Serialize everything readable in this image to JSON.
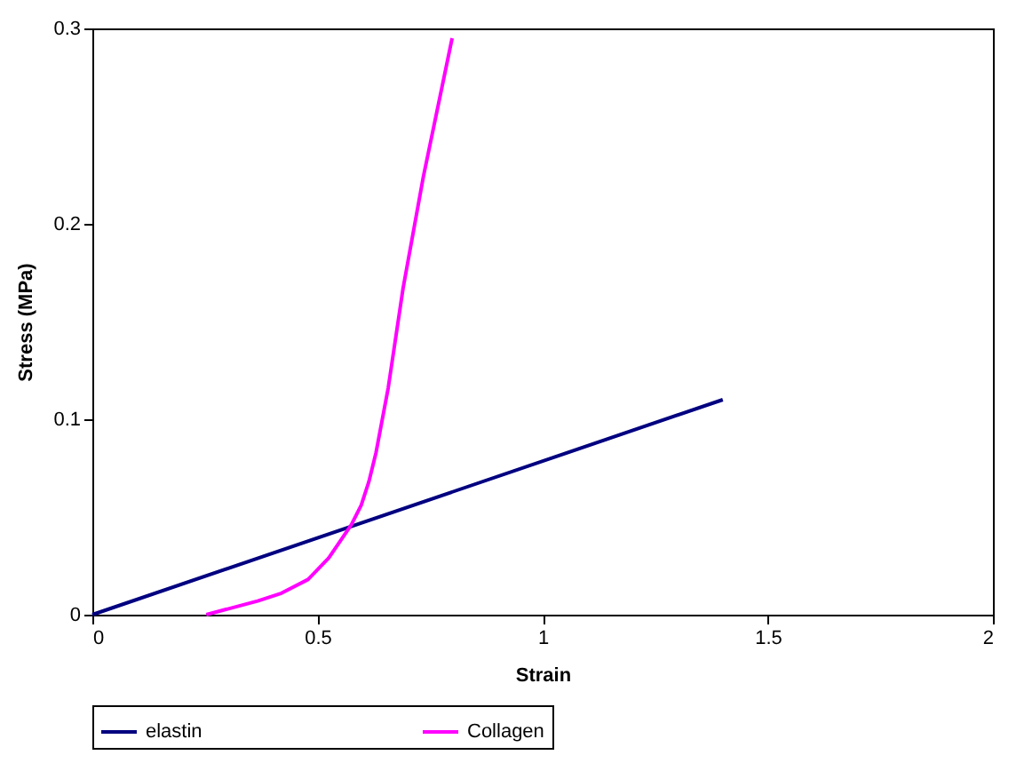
{
  "chart_data": {
    "type": "line",
    "xlabel": "Strain",
    "ylabel": "Stress (MPa)",
    "xlim": [
      0,
      2
    ],
    "xticks": [
      0,
      0.5,
      1,
      1.5,
      2
    ],
    "ylim": [
      0,
      0.3
    ],
    "yticks": [
      0,
      0.1,
      0.2,
      0.3
    ],
    "grid": false,
    "legend": "bottom",
    "marker": "none",
    "line_style": "solid",
    "series": [
      {
        "name": "elastin",
        "color": "#000080",
        "x": [
          0,
          1.4
        ],
        "values": [
          0,
          0.11
        ]
      },
      {
        "name": "Collagen",
        "color": "#ff00ff",
        "x": [
          0.253,
          0.367,
          0.42,
          0.479,
          0.525,
          0.575,
          0.597,
          0.614,
          0.63,
          0.657,
          0.69,
          0.735,
          0.799
        ],
        "values": [
          0,
          0.007,
          0.011,
          0.018,
          0.029,
          0.046,
          0.056,
          0.068,
          0.083,
          0.116,
          0.167,
          0.224,
          0.295
        ]
      }
    ]
  }
}
